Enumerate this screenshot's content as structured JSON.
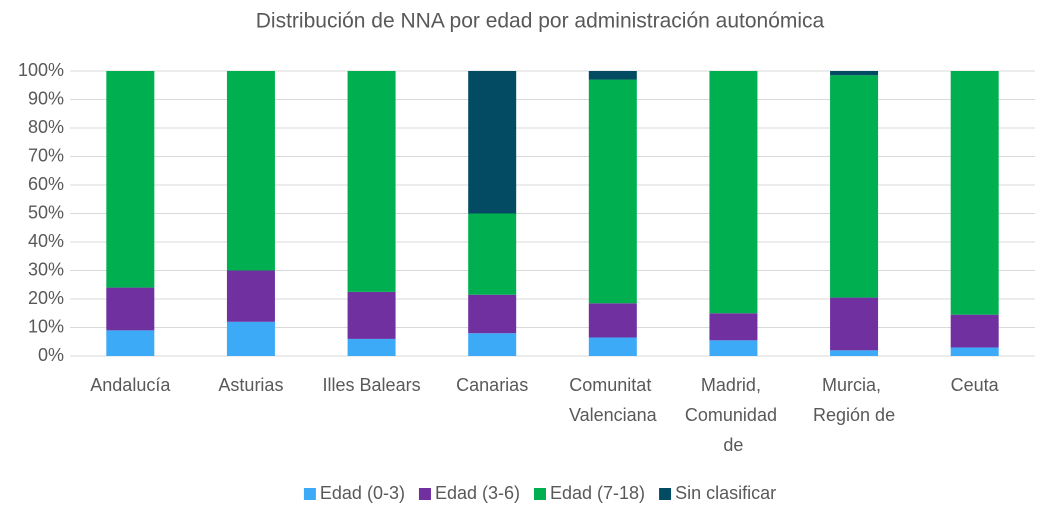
{
  "chart_data": {
    "type": "stacked_bar",
    "title": "Distribución de NNA por edad por administración autonómica",
    "categories": [
      "Andalucía",
      "Asturias",
      "Illes Balears",
      "Canarias",
      "Comunitat Valenciana",
      "Madrid, Comunidad de",
      "Murcia, Región de",
      "Ceuta"
    ],
    "series": [
      {
        "name": "Edad (0-3)",
        "color": "#3daaf7",
        "values": [
          9,
          12,
          6,
          8,
          6.5,
          5.5,
          2,
          3
        ]
      },
      {
        "name": "Edad (3-6)",
        "color": "#7030a0",
        "values": [
          15,
          18,
          16.5,
          13.5,
          12,
          9.5,
          18.5,
          11.5
        ]
      },
      {
        "name": "Edad (7-18)",
        "color": "#00b050",
        "values": [
          76,
          70,
          77.5,
          28.5,
          78.5,
          85,
          78,
          85.5
        ]
      },
      {
        "name": "Sin clasificar",
        "color": "#034a63",
        "values": [
          0,
          0,
          0,
          50,
          3,
          0,
          1.5,
          0
        ]
      }
    ],
    "ylim": [
      0,
      100
    ],
    "yticks": [
      {
        "value": 0,
        "label": "0%"
      },
      {
        "value": 10,
        "label": "10%"
      },
      {
        "value": 20,
        "label": "20%"
      },
      {
        "value": 30,
        "label": "30%"
      },
      {
        "value": 40,
        "label": "40%"
      },
      {
        "value": 50,
        "label": "50%"
      },
      {
        "value": 60,
        "label": "60%"
      },
      {
        "value": 70,
        "label": "70%"
      },
      {
        "value": 80,
        "label": "80%"
      },
      {
        "value": 90,
        "label": "90%"
      },
      {
        "value": 100,
        "label": "100%"
      }
    ],
    "grid": true,
    "legend": "bottom"
  }
}
